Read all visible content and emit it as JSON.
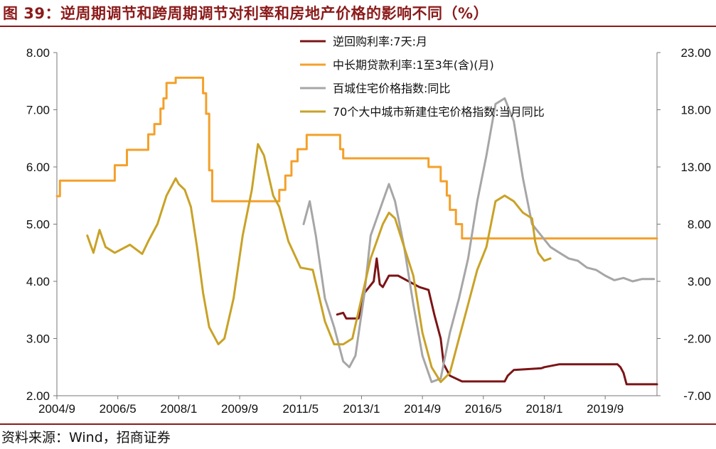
{
  "title": "图 39：逆周期调节和跨周期调节对利率和房地产价格的影响不同（%）",
  "source": "资料来源：Wind，招商证券",
  "chart_data": {
    "type": "line",
    "left_axis": {
      "ylim": [
        2.0,
        8.0
      ],
      "ticks": [
        "8.00",
        "7.00",
        "6.00",
        "5.00",
        "4.00",
        "3.00",
        "2.00"
      ]
    },
    "right_axis": {
      "ylim": [
        -7.0,
        23.0
      ],
      "ticks": [
        "23.00",
        "18.00",
        "13.00",
        "8.00",
        "3.00",
        "-2.00",
        "-7.00"
      ]
    },
    "x_ticks": [
      "2004/9",
      "2006/5",
      "2008/1",
      "2009/9",
      "2011/5",
      "2013/1",
      "2014/9",
      "2016/5",
      "2018/1",
      "2019/9"
    ],
    "x_range": [
      "2004/9",
      "2021/2"
    ],
    "legend": [
      {
        "name": "逆回购利率:7天:月",
        "color": "#7b1416"
      },
      {
        "name": "中长期贷款利率:1至3年(含)(月)",
        "color": "#f4a02a"
      },
      {
        "name": "百城住宅价格指数:同比",
        "color": "#a6a6a6"
      },
      {
        "name": "70个大中城市新建住宅价格指数:当月同比",
        "color": "#c9a227"
      }
    ],
    "series": [
      {
        "name": "中长期贷款利率:1至3年(含)(月)",
        "axis": "left",
        "color": "#f4a02a",
        "step": true,
        "points": [
          [
            "2004/9",
            5.49
          ],
          [
            "2004/10",
            5.76
          ],
          [
            "2006/4",
            6.03
          ],
          [
            "2006/8",
            6.3
          ],
          [
            "2007/3",
            6.57
          ],
          [
            "2007/5",
            6.75
          ],
          [
            "2007/7",
            7.02
          ],
          [
            "2007/8",
            7.2
          ],
          [
            "2007/9",
            7.47
          ],
          [
            "2007/12",
            7.56
          ],
          [
            "2008/9",
            7.29
          ],
          [
            "2008/10",
            6.93
          ],
          [
            "2008/11",
            5.94
          ],
          [
            "2008/12",
            5.4
          ],
          [
            "2010/10",
            5.6
          ],
          [
            "2010/12",
            5.85
          ],
          [
            "2011/2",
            6.1
          ],
          [
            "2011/4",
            6.31
          ],
          [
            "2011/7",
            6.56
          ],
          [
            "2012/6",
            6.31
          ],
          [
            "2012/7",
            6.15
          ],
          [
            "2014/11",
            6.0
          ],
          [
            "2015/3",
            5.75
          ],
          [
            "2015/5",
            5.5
          ],
          [
            "2015/6",
            5.25
          ],
          [
            "2015/8",
            5.0
          ],
          [
            "2015/10",
            4.75
          ],
          [
            "2021/2",
            4.75
          ]
        ]
      },
      {
        "name": "逆回购利率:7天:月",
        "axis": "left",
        "color": "#7b1416",
        "points": [
          [
            "2012/5",
            3.42
          ],
          [
            "2012/7",
            3.45
          ],
          [
            "2012/8",
            3.35
          ],
          [
            "2012/12",
            3.35
          ],
          [
            "2013/2",
            3.8
          ],
          [
            "2013/5",
            4.0
          ],
          [
            "2013/6",
            4.4
          ],
          [
            "2013/7",
            3.95
          ],
          [
            "2013/8",
            3.9
          ],
          [
            "2013/10",
            4.1
          ],
          [
            "2014/1",
            4.1
          ],
          [
            "2014/8",
            3.9
          ],
          [
            "2014/11",
            3.85
          ],
          [
            "2015/1",
            3.4
          ],
          [
            "2015/3",
            3.0
          ],
          [
            "2015/4",
            2.55
          ],
          [
            "2015/6",
            2.35
          ],
          [
            "2015/10",
            2.25
          ],
          [
            "2016/12",
            2.25
          ],
          [
            "2017/1",
            2.35
          ],
          [
            "2017/3",
            2.45
          ],
          [
            "2017/12",
            2.48
          ],
          [
            "2018/1",
            2.5
          ],
          [
            "2018/6",
            2.55
          ],
          [
            "2020/1",
            2.55
          ],
          [
            "2020/2",
            2.5
          ],
          [
            "2020/3",
            2.4
          ],
          [
            "2020/4",
            2.2
          ],
          [
            "2021/2",
            2.2
          ]
        ]
      },
      {
        "name": "百城住宅价格指数:同比",
        "axis": "right",
        "color": "#a6a6a6",
        "points": [
          [
            "2011/6",
            8.0
          ],
          [
            "2011/8",
            10.0
          ],
          [
            "2011/10",
            7.0
          ],
          [
            "2012/1",
            1.5
          ],
          [
            "2012/4",
            -1.0
          ],
          [
            "2012/7",
            -4.0
          ],
          [
            "2012/9",
            -4.5
          ],
          [
            "2012/11",
            -3.5
          ],
          [
            "2013/2",
            2.0
          ],
          [
            "2013/4",
            7.0
          ],
          [
            "2013/8",
            10.0
          ],
          [
            "2013/10",
            11.5
          ],
          [
            "2013/12",
            10.0
          ],
          [
            "2014/3",
            6.0
          ],
          [
            "2014/6",
            1.0
          ],
          [
            "2014/9",
            -3.5
          ],
          [
            "2014/12",
            -5.8
          ],
          [
            "2015/3",
            -5.5
          ],
          [
            "2015/6",
            -1.5
          ],
          [
            "2015/9",
            1.5
          ],
          [
            "2015/12",
            5.0
          ],
          [
            "2016/3",
            10.0
          ],
          [
            "2016/6",
            14.0
          ],
          [
            "2016/9",
            18.5
          ],
          [
            "2016/12",
            19.0
          ],
          [
            "2017/3",
            17.0
          ],
          [
            "2017/6",
            12.0
          ],
          [
            "2017/9",
            8.0
          ],
          [
            "2017/12",
            7.0
          ],
          [
            "2018/3",
            6.0
          ],
          [
            "2018/6",
            5.5
          ],
          [
            "2018/9",
            5.0
          ],
          [
            "2018/12",
            4.8
          ],
          [
            "2019/3",
            4.2
          ],
          [
            "2019/6",
            4.0
          ],
          [
            "2019/9",
            3.5
          ],
          [
            "2019/12",
            3.1
          ],
          [
            "2020/3",
            3.3
          ],
          [
            "2020/6",
            3.0
          ],
          [
            "2020/9",
            3.2
          ],
          [
            "2021/1",
            3.2
          ]
        ]
      },
      {
        "name": "70个大中城市新建住宅价格指数:当月同比",
        "axis": "right",
        "color": "#c9a227",
        "points": [
          [
            "2005/7",
            7.0
          ],
          [
            "2005/9",
            5.5
          ],
          [
            "2005/11",
            7.5
          ],
          [
            "2006/1",
            6.0
          ],
          [
            "2006/4",
            5.5
          ],
          [
            "2006/9",
            6.2
          ],
          [
            "2007/1",
            5.4
          ],
          [
            "2007/3",
            6.5
          ],
          [
            "2007/6",
            8.0
          ],
          [
            "2007/9",
            10.5
          ],
          [
            "2007/12",
            12.0
          ],
          [
            "2008/1",
            11.5
          ],
          [
            "2008/3",
            11.0
          ],
          [
            "2008/5",
            9.5
          ],
          [
            "2008/7",
            6.0
          ],
          [
            "2008/9",
            2.0
          ],
          [
            "2008/11",
            -1.0
          ],
          [
            "2009/2",
            -2.5
          ],
          [
            "2009/4",
            -2.0
          ],
          [
            "2009/7",
            1.5
          ],
          [
            "2009/10",
            7.0
          ],
          [
            "2010/1",
            11.0
          ],
          [
            "2010/3",
            15.0
          ],
          [
            "2010/5",
            14.0
          ],
          [
            "2010/8",
            10.5
          ],
          [
            "2010/10",
            9.5
          ],
          [
            "2011/1",
            6.5
          ],
          [
            "2011/5",
            4.2
          ],
          [
            "2011/9",
            4.0
          ],
          [
            "2012/1",
            -0.5
          ],
          [
            "2012/4",
            -2.5
          ],
          [
            "2012/7",
            -2.5
          ],
          [
            "2012/10",
            -2.0
          ],
          [
            "2013/1",
            1.5
          ],
          [
            "2013/4",
            5.0
          ],
          [
            "2013/8",
            8.0
          ],
          [
            "2013/10",
            9.0
          ],
          [
            "2013/12",
            8.5
          ],
          [
            "2014/3",
            6.0
          ],
          [
            "2014/6",
            3.5
          ],
          [
            "2014/9",
            -1.5
          ],
          [
            "2014/12",
            -4.5
          ],
          [
            "2015/3",
            -5.8
          ],
          [
            "2015/6",
            -5.0
          ],
          [
            "2015/9",
            -2.0
          ],
          [
            "2015/12",
            1.0
          ],
          [
            "2016/3",
            4.0
          ],
          [
            "2016/6",
            6.0
          ],
          [
            "2016/9",
            10.0
          ],
          [
            "2016/12",
            10.5
          ],
          [
            "2017/3",
            10.0
          ],
          [
            "2017/6",
            9.0
          ],
          [
            "2017/9",
            8.5
          ],
          [
            "2017/10",
            6.5
          ],
          [
            "2017/11",
            5.5
          ],
          [
            "2018/1",
            4.8
          ],
          [
            "2018/3",
            5.0
          ]
        ]
      }
    ]
  }
}
